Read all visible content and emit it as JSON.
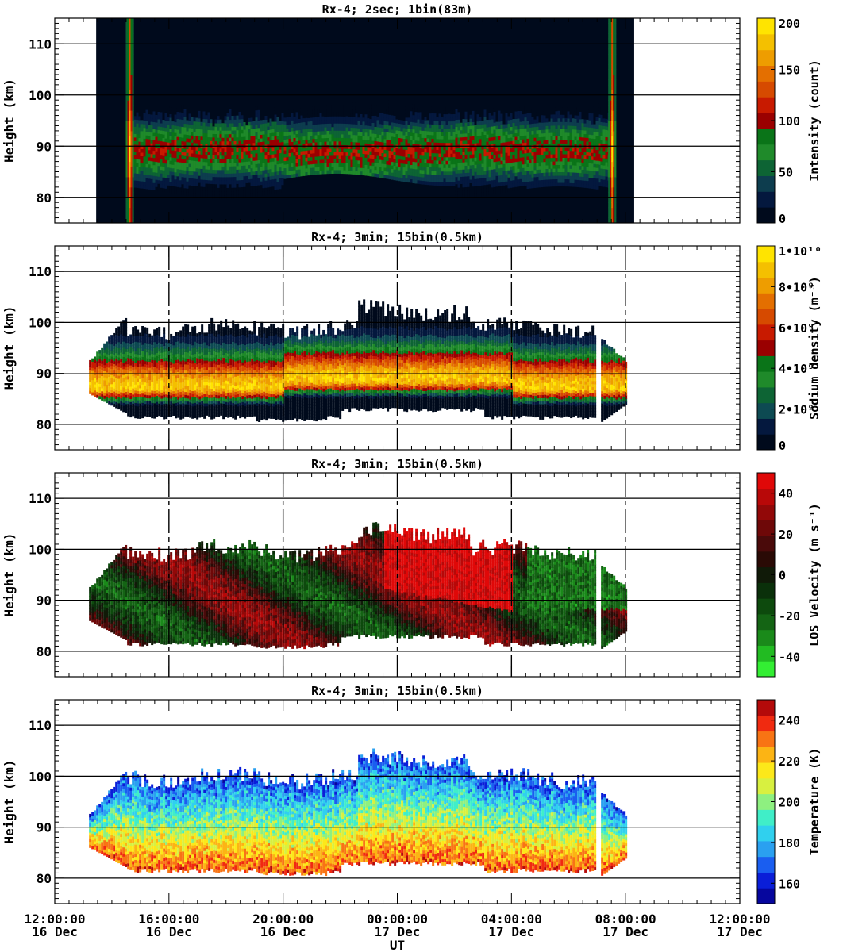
{
  "figure": {
    "xlabel": "UT"
  },
  "time_axis": {
    "range_hours": [
      0,
      24
    ],
    "ticks": [
      {
        "hour": 0,
        "time": "12:00:00",
        "date": "16 Dec"
      },
      {
        "hour": 4,
        "time": "16:00:00",
        "date": "16 Dec"
      },
      {
        "hour": 8,
        "time": "20:00:00",
        "date": "16 Dec"
      },
      {
        "hour": 12,
        "time": "00:00:00",
        "date": "17 Dec"
      },
      {
        "hour": 16,
        "time": "04:00:00",
        "date": "17 Dec"
      },
      {
        "hour": 20,
        "time": "08:00:00",
        "date": "17 Dec"
      },
      {
        "hour": 24,
        "time": "12:00:00",
        "date": "17 Dec"
      }
    ]
  },
  "chart_data": [
    {
      "type": "heatmap",
      "title": "Rx-4;  2sec; 1bin(83m)",
      "ylabel": "Height (km)",
      "ylim": [
        75,
        115
      ],
      "yticks": [
        80,
        90,
        100,
        110
      ],
      "grid": "horizontal",
      "dashed_time_grid": false,
      "colorbar": {
        "label": "Intensity (count)",
        "range": [
          0,
          200
        ],
        "ticks": [
          {
            "v": 0,
            "t": "0"
          },
          {
            "v": 50,
            "t": "50"
          },
          {
            "v": 100,
            "t": "100"
          },
          {
            "v": 150,
            "t": "150"
          },
          {
            "v": 200,
            "t": "200"
          }
        ],
        "colors": [
          "#000a1c",
          "#04183e",
          "#0d3d4e",
          "#0d6434",
          "#1f8a2a",
          "#0a7418",
          "#9a0000",
          "#c81a00",
          "#d64a00",
          "#e46f00",
          "#ee9d00",
          "#f4c000",
          "#ffe400"
        ]
      },
      "data_window_hours": [
        1.45,
        20.3
      ],
      "layer": {
        "start_hour": 2.6,
        "end_hour": 19.6,
        "peak_height_km": 89,
        "top_km": 98,
        "bottom_km": 81,
        "edge_bands_hours": [
          2.6,
          19.5
        ],
        "peak_value": 190
      }
    },
    {
      "type": "heatmap",
      "title": "Rx-4; 3min; 15bin(0.5km)",
      "ylabel": "Height (km)",
      "ylim": [
        75,
        115
      ],
      "yticks": [
        80,
        90,
        100,
        110
      ],
      "grid": "horizontal",
      "dashed_time_grid": true,
      "colorbar": {
        "label": "Sodium density (m⁻³)",
        "range": [
          0,
          10000000000.0
        ],
        "ticks": [
          {
            "v": 0,
            "t": "0"
          },
          {
            "v": 2000000000.0,
            "t": "2•10⁹"
          },
          {
            "v": 4000000000.0,
            "t": "4•10⁹"
          },
          {
            "v": 6000000000.0,
            "t": "6•10⁹"
          },
          {
            "v": 8000000000.0,
            "t": "8•10⁹"
          },
          {
            "v": 10000000000.0,
            "t": "1•10¹⁰"
          }
        ],
        "colors": [
          "#000a1c",
          "#04183e",
          "#0d4a52",
          "#0d6434",
          "#1f8a2a",
          "#0a7418",
          "#9a0000",
          "#c81a00",
          "#d64a00",
          "#e46f00",
          "#ee9d00",
          "#f4c000",
          "#ffe400"
        ]
      },
      "layer": {
        "start_hour": 1.2,
        "end_hour": 20.0,
        "peak_height_km": 87,
        "top_km": 100,
        "bottom_km": 81,
        "peak_value": 9000000000.0,
        "gap_hour": 19.0
      }
    },
    {
      "type": "heatmap",
      "title": "Rx-4; 3min; 15bin(0.5km)",
      "ylabel": "Height (km)",
      "ylim": [
        75,
        115
      ],
      "yticks": [
        80,
        90,
        100,
        110
      ],
      "grid": "horizontal",
      "dashed_time_grid": true,
      "colorbar": {
        "label": "LOS Velocity (m s⁻¹)",
        "range": [
          -50,
          50
        ],
        "ticks": [
          {
            "v": -40,
            "t": "-40"
          },
          {
            "v": -20,
            "t": "-20"
          },
          {
            "v": 0,
            "t": "0"
          },
          {
            "v": 20,
            "t": "20"
          },
          {
            "v": 40,
            "t": "40"
          }
        ],
        "colors": [
          "#33ee33",
          "#22bb22",
          "#1a8a1a",
          "#146414",
          "#0d4a0d",
          "#0a300a",
          "#101a08",
          "#2a0a05",
          "#4a0a0a",
          "#6e0808",
          "#920808",
          "#b80808",
          "#e00808"
        ]
      },
      "layer": {
        "start_hour": 1.2,
        "end_hour": 20.0,
        "top_km": 101,
        "bottom_km": 81,
        "gap_hour": 19.0
      }
    },
    {
      "type": "heatmap",
      "title": "Rx-4; 3min; 15bin(0.5km)",
      "ylabel": "Height (km)",
      "ylim": [
        75,
        115
      ],
      "yticks": [
        80,
        90,
        100,
        110
      ],
      "grid": "horizontal",
      "dashed_time_grid": false,
      "colorbar": {
        "label": "Temperature (K)",
        "range": [
          150,
          250
        ],
        "ticks": [
          {
            "v": 160,
            "t": "160"
          },
          {
            "v": 180,
            "t": "180"
          },
          {
            "v": 200,
            "t": "200"
          },
          {
            "v": 220,
            "t": "220"
          },
          {
            "v": 240,
            "t": "240"
          }
        ],
        "colors": [
          "#06069e",
          "#0a1ed8",
          "#1a5ef0",
          "#2aa0f0",
          "#30d0ee",
          "#40eec8",
          "#8ef080",
          "#d8f040",
          "#fce81a",
          "#fcb414",
          "#f87414",
          "#f02a10",
          "#b40a0a"
        ]
      },
      "layer": {
        "start_hour": 1.2,
        "end_hour": 20.0,
        "top_km": 101,
        "bottom_km": 81,
        "gap_hour": 19.0,
        "temperature_at_top_K": 165,
        "temperature_at_bottom_K": 235
      }
    }
  ]
}
